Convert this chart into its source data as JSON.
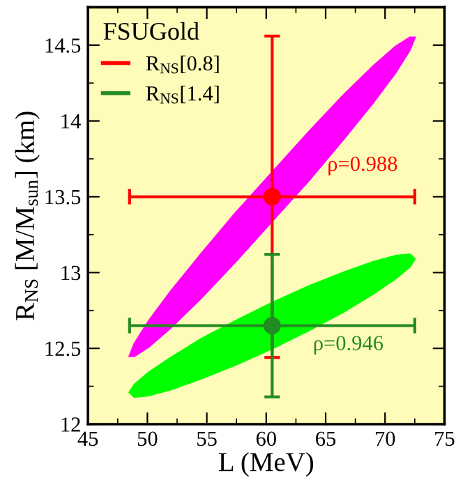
{
  "chart_data": {
    "type": "scatter",
    "xlabel": "L (MeV)",
    "ylabel": "R$_{NS}$ [M/M$_{sun}$] (km)",
    "legend_title": "FSUGold",
    "legend": "top left",
    "grid": false,
    "xlim": [
      45,
      75
    ],
    "xticks": [
      45,
      50,
      55,
      60,
      65,
      70,
      75
    ],
    "ylim": [
      12,
      14.75
    ],
    "yticks": [
      12,
      12.5,
      13,
      13.5,
      14,
      14.5
    ],
    "series": [
      {
        "type": "area",
        "marker": "none",
        "color": "#ff00ff",
        "x": [
          72.5,
          72.09,
          70.89,
          68.99,
          66.5,
          63.61,
          60.5,
          57.39,
          54.5,
          52.01,
          50.11,
          48.91,
          48.5,
          48.91,
          50.11,
          52.01,
          54.5,
          57.39,
          60.5,
          63.61,
          66.5,
          68.99,
          70.89,
          72.09
        ],
        "values": [
          14.55,
          14.55,
          14.49,
          14.36,
          14.17,
          13.93,
          13.66,
          13.39,
          13.12,
          12.88,
          12.68,
          12.53,
          12.45,
          12.45,
          12.51,
          12.64,
          12.83,
          13.07,
          13.34,
          13.61,
          13.88,
          14.12,
          14.32,
          14.47
        ]
      },
      {
        "type": "area",
        "marker": "none",
        "color": "#00ff00",
        "x": [
          72.5,
          72.09,
          70.89,
          68.99,
          66.5,
          63.61,
          60.5,
          57.39,
          54.5,
          52.01,
          50.11,
          48.91,
          48.5,
          48.91,
          50.11,
          52.01,
          54.5,
          57.39,
          60.5,
          63.61,
          66.5,
          68.99,
          70.89,
          72.09
        ],
        "values": [
          13.09,
          13.12,
          13.11,
          13.07,
          13.0,
          12.91,
          12.8,
          12.68,
          12.56,
          12.44,
          12.34,
          12.26,
          12.21,
          12.18,
          12.19,
          12.23,
          12.3,
          12.39,
          12.5,
          12.62,
          12.74,
          12.86,
          12.96,
          13.04
        ]
      },
      {
        "name": "R$_{NS}$[0.8]",
        "marker": "circle",
        "color": "#ff0000",
        "x": [
          60.5
        ],
        "values": [
          13.5
        ],
        "errors": [
          1.06
        ],
        "xerrors": [
          12
        ]
      },
      {
        "name": "R$_{NS}$[1.4]",
        "marker": "circle",
        "color": "#228b22",
        "x": [
          60.5
        ],
        "values": [
          12.65
        ],
        "errors": [
          0.47
        ],
        "xerrors": [
          12
        ]
      }
    ],
    "annotations": [
      "ρ=0.988",
      "ρ=0.946"
    ]
  }
}
